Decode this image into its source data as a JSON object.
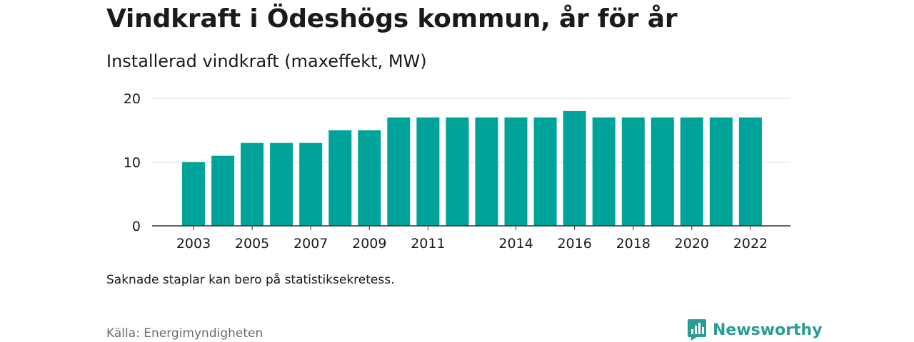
{
  "title": "Vindkraft i Ödeshögs kommun, år för år",
  "subtitle": "Installerad vindkraft (maxeffekt, MW)",
  "note": "Saknade staplar kan bero på statistiksekretess.",
  "source": "Källa: Energimyndigheten",
  "brand": {
    "name": "Newsworthy",
    "icon": "newsworthy-logo-icon",
    "color": "#2b9c95"
  },
  "chart_data": {
    "type": "bar",
    "categories": [
      "2003",
      "2004",
      "2005",
      "2006",
      "2007",
      "2008",
      "2009",
      "2010",
      "2011",
      "2012",
      "2013",
      "2014",
      "2015",
      "2016",
      "2017",
      "2018",
      "2019",
      "2020",
      "2021",
      "2022"
    ],
    "values": [
      10,
      11,
      13,
      13,
      13,
      15,
      15,
      17,
      17,
      17,
      17,
      17,
      17,
      18,
      17,
      17,
      17,
      17,
      17,
      17
    ],
    "x_tick_labels": [
      "2003",
      "2005",
      "2007",
      "2009",
      "2011",
      "2014",
      "2016",
      "2018",
      "2020",
      "2022"
    ],
    "y_ticks": [
      0,
      10,
      20
    ],
    "ylim": [
      0,
      20
    ],
    "xlabel": "",
    "ylabel": "",
    "grid": true,
    "bar_color": "#00a39a"
  }
}
